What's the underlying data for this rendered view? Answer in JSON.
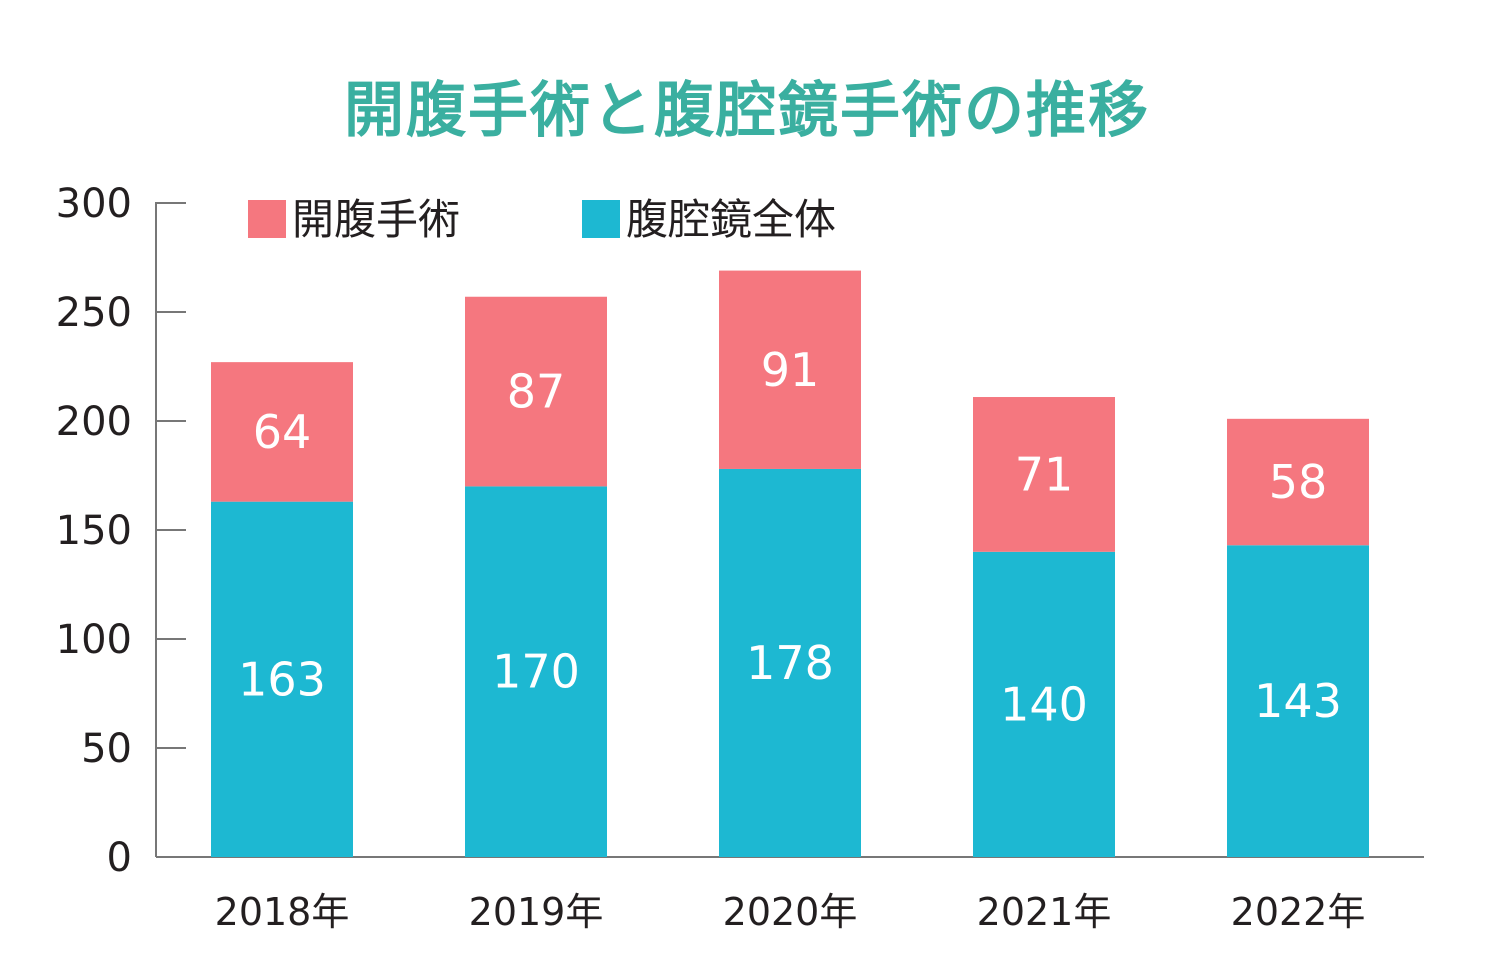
{
  "title": "開腹手術と腹腔鏡手術の推移",
  "colors": {
    "title": "#3aafa0",
    "axis": "#777777",
    "text": "#231f20",
    "data_label": "#ffffff"
  },
  "chart_data": {
    "type": "bar",
    "stacked": true,
    "title": "開腹手術と腹腔鏡手術の推移",
    "xlabel": "",
    "ylabel": "",
    "categories": [
      "2018年",
      "2019年",
      "2020年",
      "2021年",
      "2022年"
    ],
    "ylim": [
      0,
      300
    ],
    "yticks": [
      0,
      50,
      100,
      150,
      200,
      250,
      300
    ],
    "grid": false,
    "legend_position": "top",
    "series": [
      {
        "name": "腹腔鏡全体",
        "color": "#1db8d2",
        "values": [
          163,
          170,
          178,
          140,
          143
        ]
      },
      {
        "name": "開腹手術",
        "color": "#f5777f",
        "values": [
          64,
          87,
          91,
          71,
          58
        ]
      }
    ],
    "legend_order": [
      "開腹手術",
      "腹腔鏡全体"
    ]
  }
}
